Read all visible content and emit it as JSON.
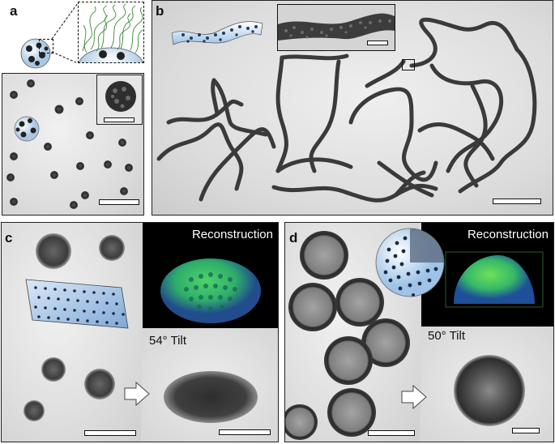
{
  "panels": {
    "a": {
      "label": "a"
    },
    "b": {
      "label": "b"
    },
    "c": {
      "label": "c",
      "reconstruction_label": "Reconstruction",
      "tilt_label": "54° Tilt"
    },
    "d": {
      "label": "d",
      "reconstruction_label": "Reconstruction",
      "tilt_label": "50° Tilt"
    }
  },
  "colors": {
    "tem_background": "#d9d9d9",
    "particle_dark": "#2a2a2a",
    "reconstruction_green": "#3fbf5a",
    "reconstruction_blue": "#2a4fa0",
    "model_blue": "#9ec3e6",
    "arrow_fill": "#ffffff"
  }
}
